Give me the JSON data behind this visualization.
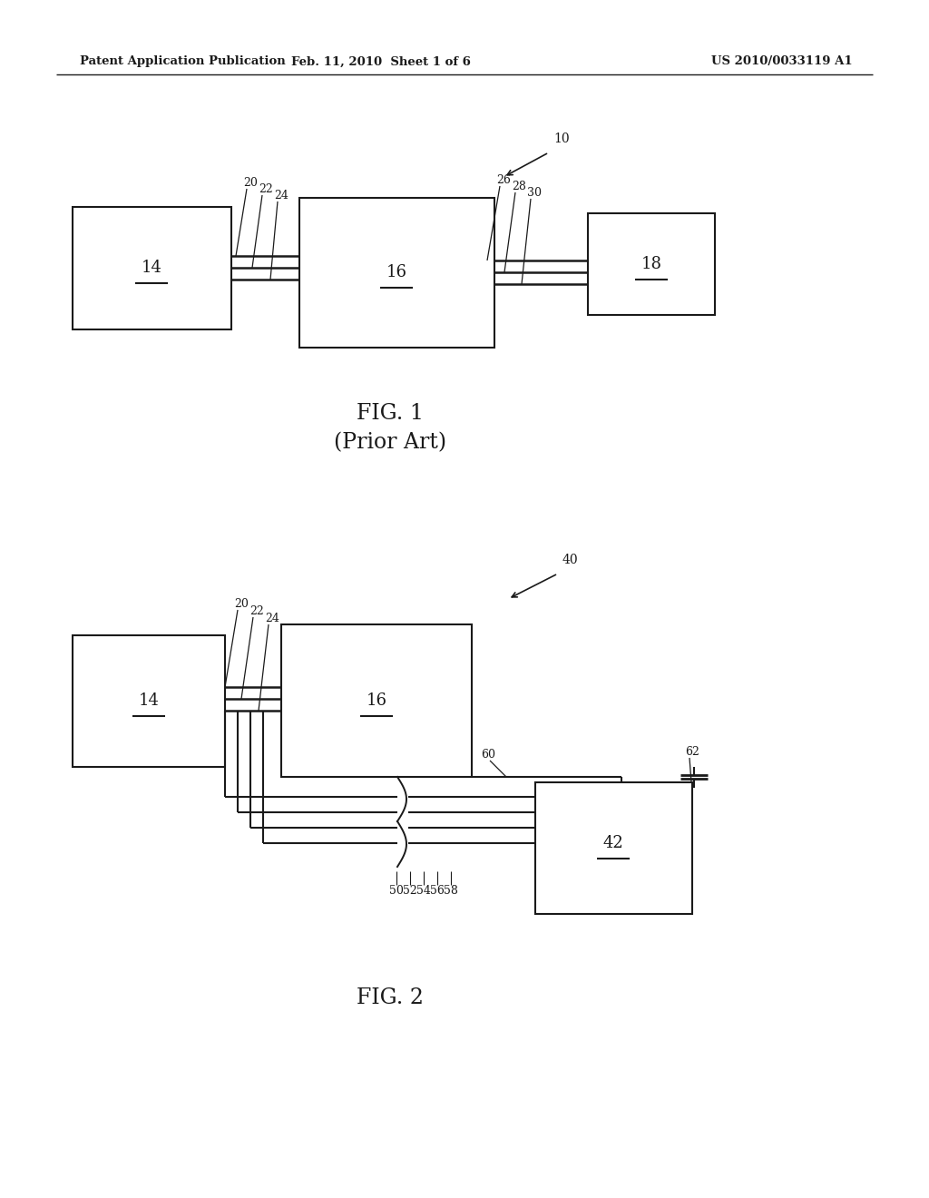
{
  "bg_color": "#ffffff",
  "line_color": "#1a1a1a",
  "header_left": "Patent Application Publication",
  "header_mid": "Feb. 11, 2010  Sheet 1 of 6",
  "header_right": "US 2010/0033119 A1",
  "fig1_label": "FIG. 1",
  "fig1_sublabel": "(Prior Art)",
  "fig2_label": "FIG. 2",
  "ref10": "10",
  "ref40": "40"
}
